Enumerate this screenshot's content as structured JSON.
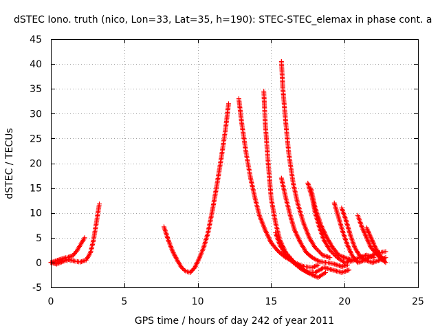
{
  "chart_data": {
    "type": "scatter",
    "title": "dSTEC Iono. truth (nico, Lon=33, Lat=35, h=190): STEC-STEC_elemax in phase cont. a",
    "xlabel": "GPS time / hours of day 242 of year 2011",
    "ylabel": "dSTEC  / TECUs",
    "xlim": [
      0,
      25
    ],
    "ylim": [
      -5,
      45
    ],
    "x_ticks": [
      0,
      5,
      10,
      15,
      20,
      25
    ],
    "y_ticks": [
      -5,
      0,
      5,
      10,
      15,
      20,
      25,
      30,
      35,
      40,
      45
    ],
    "grid": true,
    "marker": "plus",
    "series": [
      {
        "color": "#ff0000",
        "points": [
          [
            0.0,
            0.0
          ],
          [
            0.3,
            0.3
          ],
          [
            0.6,
            0.6
          ],
          [
            0.9,
            0.9
          ],
          [
            1.2,
            1.1
          ],
          [
            1.5,
            1.4
          ],
          [
            1.8,
            2.5
          ],
          [
            2.1,
            4.0
          ],
          [
            2.3,
            5.0
          ]
        ]
      },
      {
        "color": "#ff0000",
        "points": [
          [
            0.0,
            0.0
          ],
          [
            0.4,
            -0.3
          ],
          [
            0.8,
            0.2
          ],
          [
            1.2,
            0.6
          ],
          [
            1.6,
            0.3
          ],
          [
            2.0,
            0.1
          ],
          [
            2.4,
            0.5
          ],
          [
            2.7,
            2.0
          ],
          [
            2.9,
            4.5
          ],
          [
            3.1,
            8.0
          ],
          [
            3.3,
            11.8
          ]
        ]
      },
      {
        "color": "#ff0000",
        "points": [
          [
            7.7,
            7.2
          ],
          [
            8.0,
            4.5
          ],
          [
            8.3,
            2.2
          ],
          [
            8.6,
            0.5
          ],
          [
            8.9,
            -1.0
          ],
          [
            9.2,
            -1.8
          ],
          [
            9.5,
            -2.0
          ],
          [
            9.8,
            -1.0
          ],
          [
            10.1,
            0.8
          ],
          [
            10.4,
            3.0
          ],
          [
            10.7,
            6.0
          ],
          [
            11.0,
            10.5
          ],
          [
            11.3,
            15.5
          ],
          [
            11.6,
            21.0
          ],
          [
            11.9,
            27.0
          ],
          [
            12.1,
            32.0
          ]
        ]
      },
      {
        "color": "#ff0000",
        "points": [
          [
            12.8,
            33.0
          ],
          [
            13.0,
            28.0
          ],
          [
            13.3,
            22.0
          ],
          [
            13.6,
            17.0
          ],
          [
            13.9,
            13.0
          ],
          [
            14.2,
            9.5
          ],
          [
            14.6,
            6.5
          ],
          [
            15.0,
            4.0
          ],
          [
            15.5,
            2.2
          ],
          [
            16.0,
            1.0
          ],
          [
            16.6,
            0.0
          ],
          [
            17.2,
            -0.8
          ],
          [
            17.8,
            -1.0
          ],
          [
            18.2,
            -0.5
          ]
        ]
      },
      {
        "color": "#ff0000",
        "points": [
          [
            14.5,
            34.5
          ],
          [
            14.6,
            28.0
          ],
          [
            14.8,
            20.0
          ],
          [
            15.0,
            13.0
          ],
          [
            15.3,
            8.0
          ],
          [
            15.6,
            4.5
          ],
          [
            16.0,
            2.0
          ],
          [
            16.6,
            0.0
          ],
          [
            17.2,
            -1.5
          ],
          [
            17.8,
            -2.5
          ],
          [
            18.2,
            -3.0
          ],
          [
            18.7,
            -2.0
          ]
        ]
      },
      {
        "color": "#ff0000",
        "points": [
          [
            15.7,
            40.5
          ],
          [
            15.8,
            35.0
          ],
          [
            16.0,
            28.0
          ],
          [
            16.2,
            22.0
          ],
          [
            16.5,
            16.0
          ],
          [
            16.8,
            12.0
          ],
          [
            17.2,
            8.0
          ],
          [
            17.6,
            5.0
          ],
          [
            18.0,
            3.0
          ],
          [
            18.5,
            1.5
          ],
          [
            19.0,
            1.0
          ]
        ]
      },
      {
        "color": "#ff0000",
        "points": [
          [
            15.7,
            17.0
          ],
          [
            16.0,
            13.0
          ],
          [
            16.3,
            9.5
          ],
          [
            16.6,
            6.5
          ],
          [
            17.0,
            4.0
          ],
          [
            17.4,
            2.0
          ],
          [
            17.8,
            1.0
          ],
          [
            18.3,
            0.2
          ],
          [
            18.8,
            0.0
          ],
          [
            19.3,
            -0.3
          ],
          [
            19.8,
            -0.8
          ],
          [
            20.2,
            -0.5
          ]
        ]
      },
      {
        "color": "#ff0000",
        "points": [
          [
            15.3,
            6.0
          ],
          [
            15.6,
            3.5
          ],
          [
            16.0,
            1.5
          ],
          [
            16.5,
            0.0
          ],
          [
            17.0,
            -1.2
          ],
          [
            17.5,
            -2.0
          ],
          [
            18.0,
            -2.0
          ],
          [
            18.6,
            -1.0
          ],
          [
            19.2,
            -1.5
          ],
          [
            19.8,
            -2.0
          ],
          [
            20.3,
            -1.5
          ]
        ]
      },
      {
        "color": "#ff0000",
        "points": [
          [
            17.5,
            16.0
          ],
          [
            17.8,
            13.0
          ],
          [
            18.0,
            10.0
          ],
          [
            18.3,
            7.0
          ],
          [
            18.6,
            4.5
          ],
          [
            19.0,
            2.5
          ],
          [
            19.5,
            1.0
          ],
          [
            20.0,
            0.0
          ],
          [
            20.5,
            0.3
          ],
          [
            21.0,
            1.0
          ],
          [
            21.5,
            1.5
          ],
          [
            22.0,
            1.0
          ]
        ]
      },
      {
        "color": "#ff0000",
        "points": [
          [
            17.7,
            15.0
          ],
          [
            18.0,
            11.0
          ],
          [
            18.4,
            7.5
          ],
          [
            18.8,
            5.0
          ],
          [
            19.2,
            3.0
          ],
          [
            19.6,
            1.5
          ],
          [
            20.0,
            1.0
          ],
          [
            20.5,
            0.5
          ]
        ]
      },
      {
        "color": "#ff0000",
        "points": [
          [
            19.3,
            12.0
          ],
          [
            19.6,
            9.0
          ],
          [
            19.9,
            6.0
          ],
          [
            20.2,
            3.5
          ],
          [
            20.5,
            1.5
          ],
          [
            20.9,
            0.0
          ],
          [
            21.4,
            0.5
          ],
          [
            21.9,
            1.5
          ],
          [
            22.4,
            2.0
          ],
          [
            22.8,
            2.2
          ]
        ]
      },
      {
        "color": "#ff0000",
        "points": [
          [
            19.8,
            11.0
          ],
          [
            20.1,
            8.5
          ],
          [
            20.4,
            5.5
          ],
          [
            20.7,
            3.0
          ],
          [
            21.0,
            1.5
          ],
          [
            21.4,
            0.5
          ],
          [
            21.9,
            0.0
          ],
          [
            22.4,
            0.5
          ],
          [
            22.8,
            1.0
          ]
        ]
      },
      {
        "color": "#ff0000",
        "points": [
          [
            20.9,
            9.5
          ],
          [
            21.2,
            7.0
          ],
          [
            21.5,
            5.0
          ],
          [
            21.8,
            3.0
          ],
          [
            22.1,
            2.0
          ],
          [
            22.4,
            1.0
          ],
          [
            22.8,
            0.0
          ]
        ]
      },
      {
        "color": "#ff0000",
        "points": [
          [
            21.5,
            7.0
          ],
          [
            21.8,
            5.0
          ],
          [
            22.1,
            3.0
          ],
          [
            22.4,
            1.5
          ],
          [
            22.7,
            0.5
          ]
        ]
      }
    ]
  }
}
